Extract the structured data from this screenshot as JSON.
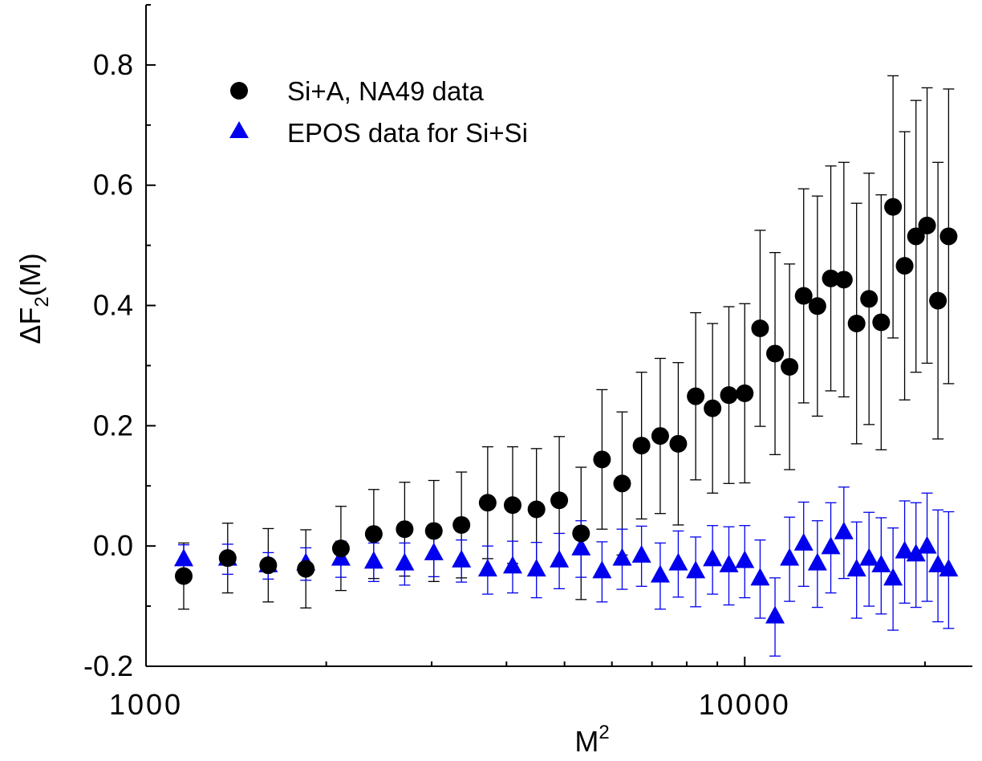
{
  "chart_data": {
    "type": "scatter",
    "x_scale": "log",
    "xlim": [
      1000,
      24000
    ],
    "ylim": [
      -0.2,
      0.9
    ],
    "xlabel": "M",
    "xlabel_sup": "2",
    "ylabel_main": "ΔF",
    "ylabel_sub": "2",
    "ylabel_tail": "(M)",
    "x_tick_labels": [
      {
        "value": 1000,
        "label": "1000"
      },
      {
        "value": 10000,
        "label": "10000"
      }
    ],
    "y_tick_labels": [
      {
        "value": -0.2,
        "label": "-0.2"
      },
      {
        "value": 0.0,
        "label": "0.0"
      },
      {
        "value": 0.2,
        "label": "0.2"
      },
      {
        "value": 0.4,
        "label": "0.4"
      },
      {
        "value": 0.6,
        "label": "0.6"
      },
      {
        "value": 0.8,
        "label": "0.8"
      }
    ],
    "legend_position": "top-left",
    "series": [
      {
        "name": "Si+A, NA49 data",
        "marker": "circle",
        "color": "#000000",
        "errorColor": "#000000",
        "points": [
          {
            "x": 1156,
            "y": -0.05,
            "err": 0.055
          },
          {
            "x": 1369,
            "y": -0.02,
            "err": 0.058
          },
          {
            "x": 1600,
            "y": -0.032,
            "err": 0.061
          },
          {
            "x": 1849,
            "y": -0.038,
            "err": 0.065
          },
          {
            "x": 2116,
            "y": -0.004,
            "err": 0.07
          },
          {
            "x": 2401,
            "y": 0.02,
            "err": 0.074
          },
          {
            "x": 2704,
            "y": 0.028,
            "err": 0.078
          },
          {
            "x": 3025,
            "y": 0.025,
            "err": 0.084
          },
          {
            "x": 3364,
            "y": 0.035,
            "err": 0.088
          },
          {
            "x": 3721,
            "y": 0.072,
            "err": 0.093
          },
          {
            "x": 4096,
            "y": 0.068,
            "err": 0.097
          },
          {
            "x": 4489,
            "y": 0.061,
            "err": 0.101
          },
          {
            "x": 4900,
            "y": 0.076,
            "err": 0.106
          },
          {
            "x": 5329,
            "y": 0.021,
            "err": 0.11
          },
          {
            "x": 5776,
            "y": 0.144,
            "err": 0.116
          },
          {
            "x": 6241,
            "y": 0.104,
            "err": 0.119
          },
          {
            "x": 6724,
            "y": 0.167,
            "err": 0.122
          },
          {
            "x": 7225,
            "y": 0.183,
            "err": 0.129
          },
          {
            "x": 7744,
            "y": 0.17,
            "err": 0.135
          },
          {
            "x": 8281,
            "y": 0.249,
            "err": 0.139
          },
          {
            "x": 8836,
            "y": 0.229,
            "err": 0.141
          },
          {
            "x": 9409,
            "y": 0.251,
            "err": 0.147
          },
          {
            "x": 10000,
            "y": 0.254,
            "err": 0.149
          },
          {
            "x": 10609,
            "y": 0.362,
            "err": 0.163
          },
          {
            "x": 11236,
            "y": 0.32,
            "err": 0.168
          },
          {
            "x": 11881,
            "y": 0.298,
            "err": 0.171
          },
          {
            "x": 12544,
            "y": 0.416,
            "err": 0.178
          },
          {
            "x": 13225,
            "y": 0.399,
            "err": 0.183
          },
          {
            "x": 13924,
            "y": 0.445,
            "err": 0.187
          },
          {
            "x": 14641,
            "y": 0.443,
            "err": 0.195
          },
          {
            "x": 15376,
            "y": 0.37,
            "err": 0.2
          },
          {
            "x": 16129,
            "y": 0.411,
            "err": 0.209
          },
          {
            "x": 16900,
            "y": 0.372,
            "err": 0.212
          },
          {
            "x": 17689,
            "y": 0.564,
            "err": 0.218
          },
          {
            "x": 18496,
            "y": 0.466,
            "err": 0.223
          },
          {
            "x": 19321,
            "y": 0.515,
            "err": 0.226
          },
          {
            "x": 20164,
            "y": 0.533,
            "err": 0.229
          },
          {
            "x": 21025,
            "y": 0.408,
            "err": 0.23
          },
          {
            "x": 21904,
            "y": 0.515,
            "err": 0.245
          }
        ]
      },
      {
        "name": "EPOS data for Si+Si",
        "marker": "triangle",
        "color": "#0000ee",
        "errorColor": "#0000ee",
        "points": [
          {
            "x": 1156,
            "y": -0.023,
            "err": 0.025
          },
          {
            "x": 1369,
            "y": -0.022,
            "err": 0.025
          },
          {
            "x": 1600,
            "y": -0.033,
            "err": 0.022
          },
          {
            "x": 1849,
            "y": -0.03,
            "err": 0.027
          },
          {
            "x": 2116,
            "y": -0.022,
            "err": 0.03
          },
          {
            "x": 2401,
            "y": -0.027,
            "err": 0.032
          },
          {
            "x": 2704,
            "y": -0.03,
            "err": 0.035
          },
          {
            "x": 3025,
            "y": -0.013,
            "err": 0.038
          },
          {
            "x": 3364,
            "y": -0.025,
            "err": 0.035
          },
          {
            "x": 3721,
            "y": -0.04,
            "err": 0.04
          },
          {
            "x": 4096,
            "y": -0.035,
            "err": 0.043
          },
          {
            "x": 4489,
            "y": -0.04,
            "err": 0.046
          },
          {
            "x": 4900,
            "y": -0.025,
            "err": 0.046
          },
          {
            "x": 5329,
            "y": -0.005,
            "err": 0.047
          },
          {
            "x": 5776,
            "y": -0.043,
            "err": 0.05
          },
          {
            "x": 6241,
            "y": -0.022,
            "err": 0.05
          },
          {
            "x": 6724,
            "y": -0.017,
            "err": 0.05
          },
          {
            "x": 7225,
            "y": -0.05,
            "err": 0.055
          },
          {
            "x": 7744,
            "y": -0.03,
            "err": 0.055
          },
          {
            "x": 8281,
            "y": -0.043,
            "err": 0.058
          },
          {
            "x": 8836,
            "y": -0.023,
            "err": 0.057
          },
          {
            "x": 9409,
            "y": -0.033,
            "err": 0.065
          },
          {
            "x": 10000,
            "y": -0.026,
            "err": 0.06
          },
          {
            "x": 10609,
            "y": -0.055,
            "err": 0.065
          },
          {
            "x": 11236,
            "y": -0.118,
            "err": 0.065
          },
          {
            "x": 11881,
            "y": -0.022,
            "err": 0.07
          },
          {
            "x": 12544,
            "y": 0.003,
            "err": 0.07
          },
          {
            "x": 13225,
            "y": -0.03,
            "err": 0.072
          },
          {
            "x": 13924,
            "y": -0.003,
            "err": 0.075
          },
          {
            "x": 14641,
            "y": 0.022,
            "err": 0.076
          },
          {
            "x": 15376,
            "y": -0.04,
            "err": 0.08
          },
          {
            "x": 16129,
            "y": -0.022,
            "err": 0.078
          },
          {
            "x": 16900,
            "y": -0.033,
            "err": 0.08
          },
          {
            "x": 17689,
            "y": -0.055,
            "err": 0.085
          },
          {
            "x": 18496,
            "y": -0.01,
            "err": 0.085
          },
          {
            "x": 19321,
            "y": -0.015,
            "err": 0.087
          },
          {
            "x": 20164,
            "y": -0.002,
            "err": 0.09
          },
          {
            "x": 21025,
            "y": -0.033,
            "err": 0.093
          },
          {
            "x": 21904,
            "y": -0.04,
            "err": 0.097
          }
        ]
      }
    ]
  }
}
